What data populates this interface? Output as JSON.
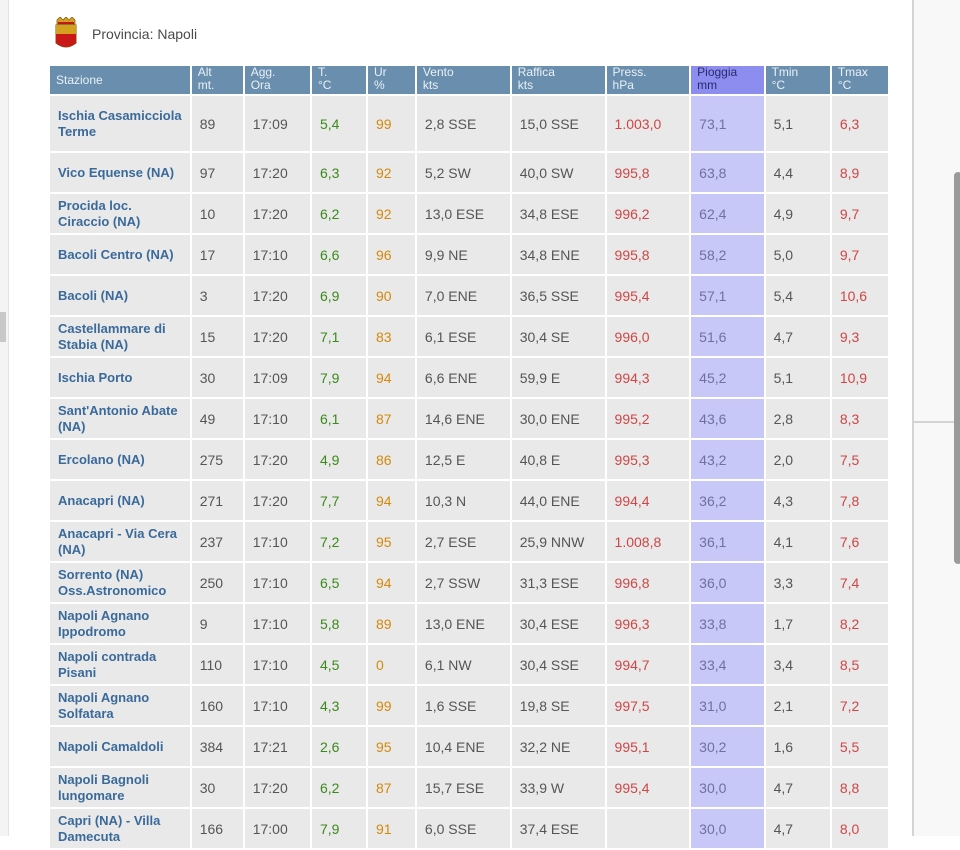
{
  "header": {
    "province_label": "Provincia: Napoli",
    "crest_icon": "napoli-crest-icon"
  },
  "columns": [
    {
      "line1": "Stazione",
      "line2": ""
    },
    {
      "line1": "Alt",
      "line2": "mt."
    },
    {
      "line1": "Agg.",
      "line2": "Ora"
    },
    {
      "line1": "T.",
      "line2": "°C"
    },
    {
      "line1": "Ur",
      "line2": "%"
    },
    {
      "line1": "Vento",
      "line2": "kts"
    },
    {
      "line1": "Raffica",
      "line2": "kts"
    },
    {
      "line1": "Press.",
      "line2": "hPa"
    },
    {
      "line1": "Pioggia",
      "line2": "mm"
    },
    {
      "line1": "Tmin",
      "line2": "°C"
    },
    {
      "line1": "Tmax",
      "line2": "°C"
    }
  ],
  "rows": [
    {
      "station": "Ischia Casamicciola Terme",
      "alt": "89",
      "time": "17:09",
      "temp": "5,4",
      "hum": "99",
      "wind": "2,8 SSE",
      "gust": "15,0 SSE",
      "press": "1.003,0",
      "rain": "73,1",
      "tmin": "5,1",
      "tmax": "6,3"
    },
    {
      "station": "Vico Equense (NA)",
      "alt": "97",
      "time": "17:20",
      "temp": "6,3",
      "hum": "92",
      "wind": "5,2 SW",
      "gust": "40,0 SW",
      "press": "995,8",
      "rain": "63,8",
      "tmin": "4,4",
      "tmax": "8,9"
    },
    {
      "station": "Procida loc. Ciraccio (NA)",
      "alt": "10",
      "time": "17:20",
      "temp": "6,2",
      "hum": "92",
      "wind": "13,0 ESE",
      "gust": "34,8 ESE",
      "press": "996,2",
      "rain": "62,4",
      "tmin": "4,9",
      "tmax": "9,7"
    },
    {
      "station": "Bacoli Centro (NA)",
      "alt": "17",
      "time": "17:10",
      "temp": "6,6",
      "hum": "96",
      "wind": "9,9 NE",
      "gust": "34,8 ENE",
      "press": "995,8",
      "rain": "58,2",
      "tmin": "5,0",
      "tmax": "9,7"
    },
    {
      "station": "Bacoli (NA)",
      "alt": "3",
      "time": "17:20",
      "temp": "6,9",
      "hum": "90",
      "wind": "7,0 ENE",
      "gust": "36,5 SSE",
      "press": "995,4",
      "rain": "57,1",
      "tmin": "5,4",
      "tmax": "10,6"
    },
    {
      "station": "Castellammare di Stabia (NA)",
      "alt": "15",
      "time": "17:20",
      "temp": "7,1",
      "hum": "83",
      "wind": "6,1 ESE",
      "gust": "30,4 SE",
      "press": "996,0",
      "rain": "51,6",
      "tmin": "4,7",
      "tmax": "9,3"
    },
    {
      "station": "Ischia Porto",
      "alt": "30",
      "time": "17:09",
      "temp": "7,9",
      "hum": "94",
      "wind": "6,6 ENE",
      "gust": "59,9 E",
      "press": "994,3",
      "rain": "45,2",
      "tmin": "5,1",
      "tmax": "10,9"
    },
    {
      "station": "Sant'Antonio Abate (NA)",
      "alt": "49",
      "time": "17:10",
      "temp": "6,1",
      "hum": "87",
      "wind": "14,6 ENE",
      "gust": "30,0 ENE",
      "press": "995,2",
      "rain": "43,6",
      "tmin": "2,8",
      "tmax": "8,3"
    },
    {
      "station": "Ercolano (NA)",
      "alt": "275",
      "time": "17:20",
      "temp": "4,9",
      "hum": "86",
      "wind": "12,5 E",
      "gust": "40,8 E",
      "press": "995,3",
      "rain": "43,2",
      "tmin": "2,0",
      "tmax": "7,5"
    },
    {
      "station": "Anacapri (NA)",
      "alt": "271",
      "time": "17:20",
      "temp": "7,7",
      "hum": "94",
      "wind": "10,3 N",
      "gust": "44,0 ENE",
      "press": "994,4",
      "rain": "36,2",
      "tmin": "4,3",
      "tmax": "7,8"
    },
    {
      "station": "Anacapri - Via Cera (NA)",
      "alt": "237",
      "time": "17:10",
      "temp": "7,2",
      "hum": "95",
      "wind": "2,7 ESE",
      "gust": "25,9 NNW",
      "press": "1.008,8",
      "rain": "36,1",
      "tmin": "4,1",
      "tmax": "7,6"
    },
    {
      "station": "Sorrento (NA) Oss.Astronomico",
      "alt": "250",
      "time": "17:10",
      "temp": "6,5",
      "hum": "94",
      "wind": "2,7 SSW",
      "gust": "31,3 ESE",
      "press": "996,8",
      "rain": "36,0",
      "tmin": "3,3",
      "tmax": "7,4"
    },
    {
      "station": "Napoli Agnano Ippodromo",
      "alt": "9",
      "time": "17:10",
      "temp": "5,8",
      "hum": "89",
      "wind": "13,0 ENE",
      "gust": "30,4 ESE",
      "press": "996,3",
      "rain": "33,8",
      "tmin": "1,7",
      "tmax": "8,2"
    },
    {
      "station": "Napoli contrada Pisani",
      "alt": "110",
      "time": "17:10",
      "temp": "4,5",
      "hum": "0",
      "wind": "6,1 NW",
      "gust": "30,4 SSE",
      "press": "994,7",
      "rain": "33,4",
      "tmin": "3,4",
      "tmax": "8,5"
    },
    {
      "station": "Napoli Agnano Solfatara",
      "alt": "160",
      "time": "17:10",
      "temp": "4,3",
      "hum": "99",
      "wind": "1,6 SSE",
      "gust": "19,8 SE",
      "press": "997,5",
      "rain": "31,0",
      "tmin": "2,1",
      "tmax": "7,2"
    },
    {
      "station": "Napoli Camaldoli",
      "alt": "384",
      "time": "17:21",
      "temp": "2,6",
      "hum": "95",
      "wind": "10,4 ENE",
      "gust": "32,2 NE",
      "press": "995,1",
      "rain": "30,2",
      "tmin": "1,6",
      "tmax": "5,5"
    },
    {
      "station": "Napoli Bagnoli lungomare",
      "alt": "30",
      "time": "17:20",
      "temp": "6,2",
      "hum": "87",
      "wind": "15,7 ESE",
      "gust": "33,9 W",
      "press": "995,4",
      "rain": "30,0",
      "tmin": "4,7",
      "tmax": "8,8"
    },
    {
      "station": "Capri (NA) - Villa Damecuta",
      "alt": "166",
      "time": "17:00",
      "temp": "7,9",
      "hum": "91",
      "wind": "6,0 SSE",
      "gust": "37,4 ESE",
      "press": "",
      "rain": "30,0",
      "tmin": "4,7",
      "tmax": "8,0"
    }
  ]
}
